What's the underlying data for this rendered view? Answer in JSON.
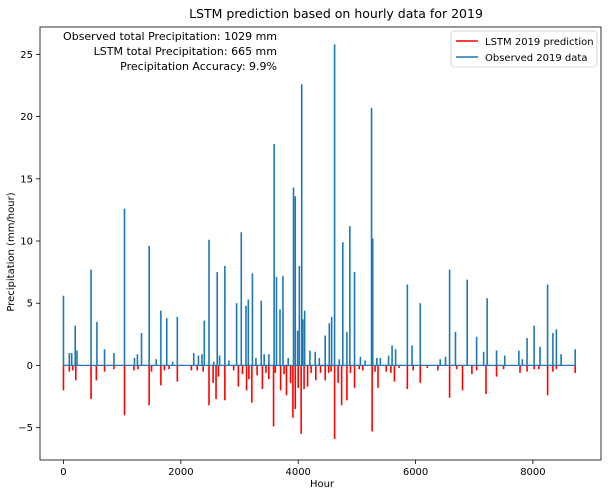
{
  "chart_data": {
    "type": "line",
    "title": "LSTM prediction based on hourly data for 2019",
    "xlabel": "Hour",
    "ylabel": "Precipitation (mm/hour)",
    "xlim": [
      -400,
      9160
    ],
    "ylim": [
      -7.6,
      27.2
    ],
    "x_ticks": [
      0,
      2000,
      4000,
      6000,
      8000
    ],
    "x_tick_labels": [
      "0",
      "2000",
      "4000",
      "6000",
      "8000"
    ],
    "y_ticks": [
      -5,
      0,
      5,
      10,
      15,
      20,
      25
    ],
    "y_tick_labels": [
      "−5",
      "0",
      "5",
      "10",
      "15",
      "20",
      "25"
    ],
    "grid": false,
    "legend_position": "upper right",
    "annotations": [
      "Observed total Precipitation: 1029 mm",
      "LSTM total Precipitation: 665 mm",
      "Precipitation Accuracy: 9.9%"
    ],
    "series": [
      {
        "name": "LSTM 2019 prediction",
        "color": "#ff0000",
        "points": [
          [
            0,
            -2.0
          ],
          [
            100,
            -0.5
          ],
          [
            160,
            -0.4
          ],
          [
            210,
            -1.2
          ],
          [
            470,
            -2.7
          ],
          [
            560,
            -1.2
          ],
          [
            700,
            -0.5
          ],
          [
            860,
            -0.3
          ],
          [
            1040,
            -4.0
          ],
          [
            1200,
            -0.4
          ],
          [
            1270,
            -0.3
          ],
          [
            1460,
            -3.2
          ],
          [
            1500,
            -0.5
          ],
          [
            1660,
            -1.6
          ],
          [
            1720,
            -0.4
          ],
          [
            1800,
            -0.3
          ],
          [
            1940,
            -1.3
          ],
          [
            2180,
            -0.4
          ],
          [
            2280,
            -0.4
          ],
          [
            2380,
            -0.5
          ],
          [
            2480,
            -3.2
          ],
          [
            2550,
            -1.4
          ],
          [
            2600,
            -2.7
          ],
          [
            2640,
            -0.9
          ],
          [
            2750,
            -2.8
          ],
          [
            2900,
            -0.4
          ],
          [
            2980,
            -1.7
          ],
          [
            3050,
            -0.7
          ],
          [
            3120,
            -2.0
          ],
          [
            3160,
            -1.1
          ],
          [
            3210,
            -3.0
          ],
          [
            3300,
            -0.8
          ],
          [
            3390,
            -1.9
          ],
          [
            3450,
            -0.6
          ],
          [
            3500,
            -1.1
          ],
          [
            3580,
            -4.9
          ],
          [
            3610,
            -0.6
          ],
          [
            3700,
            -2.0
          ],
          [
            3760,
            -0.7
          ],
          [
            3800,
            -2.4
          ],
          [
            3870,
            -1.4
          ],
          [
            3910,
            -4.2
          ],
          [
            3950,
            -3.5
          ],
          [
            4000,
            -1.8
          ],
          [
            4050,
            -5.5
          ],
          [
            4100,
            -1.9
          ],
          [
            4160,
            -1.7
          ],
          [
            4220,
            -0.6
          ],
          [
            4300,
            -1.2
          ],
          [
            4380,
            -0.6
          ],
          [
            4460,
            -1.2
          ],
          [
            4520,
            -0.6
          ],
          [
            4560,
            -0.5
          ],
          [
            4620,
            -5.9
          ],
          [
            4680,
            -1.4
          ],
          [
            4740,
            -3.2
          ],
          [
            4830,
            -2.8
          ],
          [
            4890,
            -0.6
          ],
          [
            4960,
            -1.8
          ],
          [
            5040,
            -0.3
          ],
          [
            5100,
            -0.4
          ],
          [
            5260,
            -5.3
          ],
          [
            5310,
            -0.5
          ],
          [
            5360,
            -1.8
          ],
          [
            5500,
            -0.5
          ],
          [
            5580,
            -0.6
          ],
          [
            5640,
            -1.3
          ],
          [
            5720,
            -0.2
          ],
          [
            5860,
            -1.9
          ],
          [
            5960,
            -0.4
          ],
          [
            6080,
            -1.4
          ],
          [
            6200,
            -0.2
          ],
          [
            6380,
            -0.4
          ],
          [
            6580,
            -2.6
          ],
          [
            6700,
            -0.3
          ],
          [
            6800,
            -2.0
          ],
          [
            6960,
            -0.7
          ],
          [
            7040,
            -0.4
          ],
          [
            7200,
            -2.3
          ],
          [
            7380,
            -0.9
          ],
          [
            7500,
            -0.3
          ],
          [
            7780,
            -0.6
          ],
          [
            7900,
            -0.5
          ],
          [
            8020,
            -0.3
          ],
          [
            8100,
            -0.3
          ],
          [
            8250,
            -2.4
          ],
          [
            8340,
            -0.5
          ],
          [
            8400,
            -0.3
          ],
          [
            8720,
            -0.6
          ]
        ]
      },
      {
        "name": "Observed 2019 data",
        "color": "#1f77b4",
        "points": [
          [
            0,
            5.6
          ],
          [
            100,
            1.0
          ],
          [
            140,
            1.0
          ],
          [
            200,
            3.2
          ],
          [
            230,
            1.2
          ],
          [
            470,
            7.7
          ],
          [
            570,
            3.5
          ],
          [
            700,
            1.3
          ],
          [
            860,
            1.0
          ],
          [
            1040,
            12.6
          ],
          [
            1210,
            0.6
          ],
          [
            1260,
            0.9
          ],
          [
            1330,
            2.6
          ],
          [
            1460,
            9.6
          ],
          [
            1580,
            0.5
          ],
          [
            1660,
            4.4
          ],
          [
            1760,
            3.8
          ],
          [
            1860,
            0.3
          ],
          [
            1940,
            3.9
          ],
          [
            2220,
            1.0
          ],
          [
            2300,
            0.8
          ],
          [
            2360,
            0.9
          ],
          [
            2400,
            3.6
          ],
          [
            2480,
            10.1
          ],
          [
            2560,
            0.3
          ],
          [
            2620,
            7.5
          ],
          [
            2660,
            0.8
          ],
          [
            2750,
            8.0
          ],
          [
            2820,
            0.4
          ],
          [
            2950,
            5.0
          ],
          [
            3030,
            10.7
          ],
          [
            3110,
            4.8
          ],
          [
            3150,
            5.3
          ],
          [
            3220,
            7.4
          ],
          [
            3280,
            0.6
          ],
          [
            3370,
            5.2
          ],
          [
            3420,
            0.9
          ],
          [
            3500,
            0.9
          ],
          [
            3590,
            17.8
          ],
          [
            3630,
            7.1
          ],
          [
            3690,
            4.5
          ],
          [
            3740,
            7.2
          ],
          [
            3830,
            0.6
          ],
          [
            3920,
            14.3
          ],
          [
            3950,
            13.6
          ],
          [
            3990,
            2.8
          ],
          [
            4020,
            8.0
          ],
          [
            4060,
            22.6
          ],
          [
            4080,
            3.7
          ],
          [
            4110,
            4.4
          ],
          [
            4200,
            1.2
          ],
          [
            4290,
            1.1
          ],
          [
            4360,
            0.6
          ],
          [
            4460,
            2.4
          ],
          [
            4530,
            3.4
          ],
          [
            4570,
            3.9
          ],
          [
            4620,
            25.8
          ],
          [
            4700,
            0.5
          ],
          [
            4760,
            9.9
          ],
          [
            4830,
            2.7
          ],
          [
            4880,
            11.2
          ],
          [
            4960,
            7.5
          ],
          [
            5060,
            0.7
          ],
          [
            5140,
            0.4
          ],
          [
            5250,
            20.7
          ],
          [
            5270,
            10.2
          ],
          [
            5340,
            0.6
          ],
          [
            5400,
            0.6
          ],
          [
            5540,
            0.8
          ],
          [
            5600,
            1.6
          ],
          [
            5660,
            1.3
          ],
          [
            5860,
            6.5
          ],
          [
            5940,
            1.6
          ],
          [
            6080,
            5.0
          ],
          [
            6420,
            0.5
          ],
          [
            6510,
            0.7
          ],
          [
            6580,
            7.7
          ],
          [
            6680,
            2.7
          ],
          [
            6880,
            6.9
          ],
          [
            7040,
            2.3
          ],
          [
            7160,
            1.1
          ],
          [
            7220,
            5.4
          ],
          [
            7380,
            1.2
          ],
          [
            7520,
            0.8
          ],
          [
            7760,
            1.2
          ],
          [
            7820,
            0.5
          ],
          [
            7900,
            2.2
          ],
          [
            8020,
            3.2
          ],
          [
            8120,
            1.5
          ],
          [
            8250,
            6.5
          ],
          [
            8340,
            2.6
          ],
          [
            8400,
            2.9
          ],
          [
            8480,
            0.9
          ],
          [
            8720,
            1.3
          ]
        ]
      }
    ]
  }
}
